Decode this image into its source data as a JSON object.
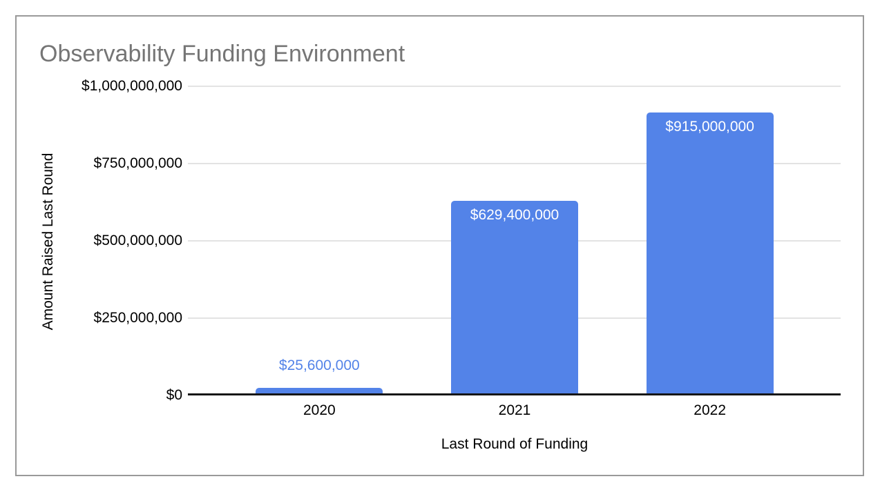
{
  "frame": {
    "background": "#ffffff",
    "border_color": "#999999"
  },
  "chart_data": {
    "type": "bar",
    "title": "Observability Funding Environment",
    "xlabel": "Last Round of Funding",
    "ylabel": "Amount Raised Last Round",
    "categories": [
      "2020",
      "2021",
      "2022"
    ],
    "values": [
      25600000,
      629400000,
      915000000
    ],
    "value_labels": [
      "$25,600,000",
      "$629,400,000",
      "$915,000,000"
    ],
    "value_label_placement": [
      "above",
      "inside",
      "inside"
    ],
    "ylim": [
      0,
      1000000000
    ],
    "y_ticks": [
      {
        "value": 0,
        "label": "$0"
      },
      {
        "value": 250000000,
        "label": "$250,000,000"
      },
      {
        "value": 500000000,
        "label": "$500,000,000"
      },
      {
        "value": 750000000,
        "label": "$750,000,000"
      },
      {
        "value": 1000000000,
        "label": "$1,000,000,000"
      }
    ],
    "grid": true,
    "legend": "none",
    "colors": {
      "bar": "#5383E8",
      "title": "#757575",
      "gridline": "#e3e3e3",
      "axis_line": "#161616",
      "tick_text": "#000000",
      "category_text": "#000000",
      "axis_title_text": "#000000",
      "value_label_above": "#5383E8",
      "value_label_inside": "#ffffff"
    }
  }
}
